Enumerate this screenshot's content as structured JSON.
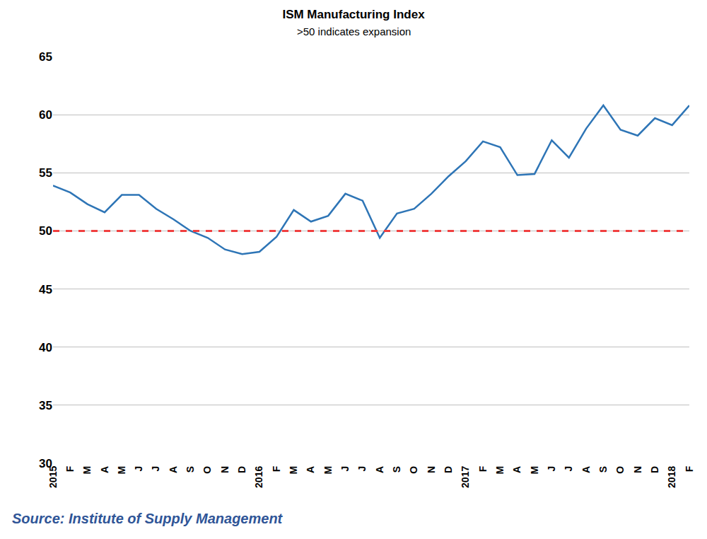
{
  "chart_data": {
    "type": "line",
    "title": "ISM Manufacturing Index",
    "subtitle": ">50 indicates expansion",
    "source": "Source: Institute of Supply Management",
    "categories": [
      "2015",
      "F",
      "M",
      "A",
      "M",
      "J",
      "J",
      "A",
      "S",
      "O",
      "N",
      "D",
      "2016",
      "F",
      "M",
      "A",
      "M",
      "J",
      "J",
      "A",
      "S",
      "O",
      "N",
      "D",
      "2017",
      "F",
      "M",
      "A",
      "M",
      "J",
      "J",
      "A",
      "S",
      "O",
      "N",
      "D",
      "2018",
      "F"
    ],
    "values": [
      53.9,
      53.3,
      52.3,
      51.6,
      53.1,
      53.1,
      51.9,
      51.0,
      50.0,
      49.4,
      48.4,
      48.0,
      48.2,
      49.5,
      51.8,
      50.8,
      51.3,
      53.2,
      52.6,
      49.4,
      51.5,
      51.9,
      53.2,
      54.7,
      56.0,
      57.7,
      57.2,
      54.8,
      54.9,
      57.8,
      56.3,
      58.8,
      60.8,
      58.7,
      58.2,
      59.7,
      59.1,
      60.8
    ],
    "color": "#2e75b6",
    "threshold": {
      "value": 50,
      "color": "#f04040",
      "line_style": "dashed"
    },
    "ylim": [
      30,
      65
    ],
    "yticks": [
      30,
      35,
      40,
      45,
      50,
      55,
      60,
      65
    ],
    "grid": true
  }
}
